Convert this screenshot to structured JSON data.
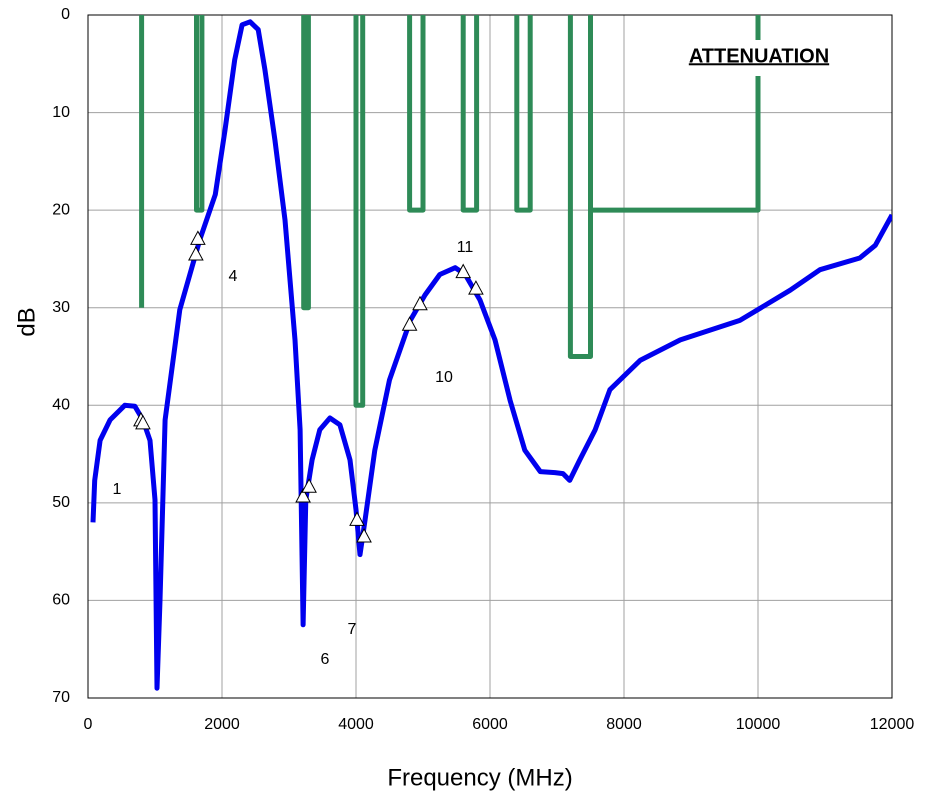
{
  "chart_data": {
    "type": "line",
    "title": "ATTENUATION",
    "x_label": "Frequency (MHz)",
    "y_label": "dB",
    "xlim": [
      0,
      12000
    ],
    "ylim": [
      0,
      70
    ],
    "y_inverted": true,
    "xticks": [
      0,
      2000,
      4000,
      6000,
      8000,
      10000,
      12000
    ],
    "yticks": [
      0,
      10,
      20,
      30,
      40,
      50,
      60,
      70
    ],
    "grid": true,
    "series": [
      {
        "style": "line",
        "color": "#2e8b57",
        "x": [
          800,
          800,
          null,
          1620,
          1620,
          1700,
          1700,
          null,
          3220,
          3220,
          3290,
          3290,
          null,
          4000,
          4000,
          4100,
          4100,
          null,
          4800,
          4800,
          5000,
          5000,
          null,
          5600,
          5600,
          5800,
          5800,
          null,
          6400,
          6400,
          6600,
          6600,
          null,
          7200,
          7200,
          7500,
          7500,
          null,
          7500,
          10000,
          10000
        ],
        "values": [
          0,
          30,
          null,
          0,
          20,
          20,
          0,
          null,
          0,
          30,
          30,
          0,
          null,
          0,
          40,
          40,
          0,
          null,
          0,
          20,
          20,
          0,
          null,
          0,
          20,
          20,
          0,
          null,
          0,
          20,
          20,
          0,
          null,
          0,
          35,
          35,
          0,
          null,
          20,
          20,
          0
        ]
      },
      {
        "style": "line",
        "color": "#0000ee",
        "x": [
          75,
          100,
          180,
          330,
          550,
          700,
          820,
          925,
          1000,
          1030,
          1075,
          1150,
          1370,
          1670,
          1900,
          2045,
          2190,
          2300,
          2420,
          2540,
          2640,
          2790,
          2940,
          3090,
          3165,
          3210,
          3250,
          3345,
          3460,
          3610,
          3760,
          3910,
          4000,
          4060,
          4135,
          4280,
          4500,
          4810,
          5030,
          5250,
          5480,
          5630,
          5850,
          6075,
          6300,
          6520,
          6750,
          6970,
          7090,
          7190,
          7340,
          7570,
          7790,
          8240,
          8840,
          9730,
          10480,
          10925,
          11520,
          11750,
          12000
        ],
        "values": [
          52,
          47.7,
          43.6,
          41.5,
          40,
          40.1,
          41.5,
          43.6,
          49.7,
          69,
          60,
          41.5,
          30.2,
          23,
          18.4,
          11.8,
          4.6,
          1,
          0.7,
          1.5,
          5.6,
          12.8,
          21,
          33.3,
          42.5,
          62.5,
          49.7,
          45.6,
          42.5,
          41.3,
          42,
          45.6,
          50.7,
          55.3,
          51.8,
          44.6,
          37.4,
          31.3,
          28.7,
          26.6,
          25.9,
          26.6,
          29.2,
          33.3,
          39.5,
          44.6,
          46.8,
          46.9,
          47,
          47.7,
          45.6,
          42.5,
          38.4,
          35.4,
          33.3,
          31.3,
          28.2,
          26.1,
          24.9,
          23.6,
          20.5
        ]
      },
      {
        "style": "marker",
        "color": "#ffffff",
        "x": [
          790,
          820,
          1640,
          1610,
          3210,
          3300,
          4015,
          4120,
          4800,
          4955,
          5600,
          5790
        ],
        "values": [
          41.6,
          41.9,
          23,
          24.6,
          49.4,
          48.4,
          51.8,
          53.5,
          31.8,
          29.7,
          26.4,
          28.1
        ]
      }
    ],
    "annotations": [
      "1",
      "4",
      "6",
      "7",
      "10",
      "11"
    ]
  }
}
